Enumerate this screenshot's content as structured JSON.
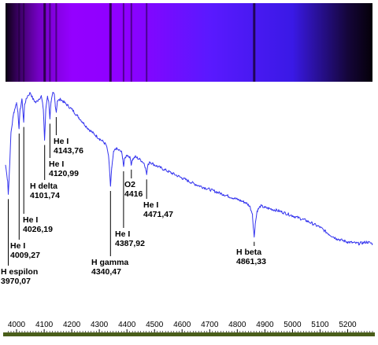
{
  "chart_data": {
    "type": "line",
    "title": "",
    "xlabel": "",
    "ylabel": "",
    "x_ticks": [
      4000,
      4100,
      4200,
      4300,
      4400,
      4500,
      4600,
      4700,
      4800,
      4900,
      5000,
      5100,
      5200
    ],
    "xlim": [
      3960,
      5290
    ],
    "grid": false,
    "colors": {
      "line": "#3333ee",
      "axis_bar": "#4a5e1a"
    },
    "spectrum_strip": {
      "stops": [
        {
          "wavelength": 3960,
          "color": "#0b0010"
        },
        {
          "wavelength": 4000,
          "color": "#35005a"
        },
        {
          "wavelength": 4080,
          "color": "#7400c4"
        },
        {
          "wavelength": 4200,
          "color": "#9400ff"
        },
        {
          "wavelength": 4400,
          "color": "#8e00ff"
        },
        {
          "wavelength": 4700,
          "color": "#5a19ff"
        },
        {
          "wavelength": 5000,
          "color": "#3a19e6"
        },
        {
          "wavelength": 5200,
          "color": "#15063a"
        },
        {
          "wavelength": 5290,
          "color": "#050008"
        }
      ],
      "lines": [
        3970.07,
        4009.27,
        4026.19,
        4101.74,
        4120.99,
        4143.76,
        4340.47,
        4387.92,
        4416,
        4471.47,
        4861.33
      ]
    },
    "series": [
      {
        "x": [
          3960,
          3968,
          3970,
          3973,
          3980,
          3990,
          4000,
          4005,
          4009,
          4013,
          4020,
          4024,
          4026,
          4029,
          4040,
          4050,
          4060,
          4070,
          4080,
          4090,
          4097,
          4101.7,
          4106,
          4112,
          4117,
          4121,
          4125,
          4132,
          4137,
          4140,
          4144,
          4148,
          4160,
          4180,
          4200,
          4220,
          4240,
          4260,
          4280,
          4300,
          4315,
          4325,
          4333,
          4337,
          4340.5,
          4345,
          4352,
          4360,
          4370,
          4380,
          4385,
          4388,
          4392,
          4400,
          4410,
          4414,
          4416,
          4419,
          4430,
          4450,
          4462,
          4468,
          4471.5,
          4475,
          4482,
          4500,
          4550,
          4600,
          4650,
          4700,
          4750,
          4800,
          4830,
          4845,
          4855,
          4858,
          4861.3,
          4865,
          4872,
          4885,
          4900,
          4950,
          5000,
          5050,
          5100,
          5130,
          5160,
          5200,
          5240,
          5270,
          5290
        ],
        "y": [
          0.58,
          0.48,
          0.4,
          0.5,
          0.78,
          0.9,
          0.96,
          0.9,
          0.8,
          0.92,
          0.98,
          0.88,
          0.84,
          0.95,
          1.0,
          1.02,
          0.98,
          0.96,
          0.98,
          1.0,
          0.92,
          0.73,
          0.92,
          1.0,
          0.96,
          0.86,
          0.96,
          1.02,
          1.01,
          0.95,
          0.9,
          0.97,
          0.98,
          0.95,
          0.92,
          0.88,
          0.84,
          0.8,
          0.77,
          0.74,
          0.72,
          0.7,
          0.64,
          0.55,
          0.45,
          0.56,
          0.66,
          0.68,
          0.67,
          0.66,
          0.62,
          0.57,
          0.62,
          0.64,
          0.63,
          0.6,
          0.58,
          0.61,
          0.63,
          0.61,
          0.59,
          0.56,
          0.52,
          0.57,
          0.6,
          0.58,
          0.54,
          0.5,
          0.46,
          0.43,
          0.4,
          0.37,
          0.35,
          0.33,
          0.28,
          0.2,
          0.14,
          0.22,
          0.3,
          0.33,
          0.32,
          0.3,
          0.27,
          0.24,
          0.2,
          0.16,
          0.13,
          0.11,
          0.1,
          0.11,
          0.1
        ]
      }
    ],
    "annotations": [
      {
        "name": "H espilon",
        "value": "3970,07",
        "wavelength": 3970.07,
        "y": 0.4,
        "placement": "bottom"
      },
      {
        "name": "He I",
        "value": "4009,27",
        "wavelength": 4009.27,
        "y": 0.8,
        "placement": "bottom"
      },
      {
        "name": "He I",
        "value": "4026,19",
        "wavelength": 4026.19,
        "y": 0.84,
        "placement": "bottom"
      },
      {
        "name": "H delta",
        "value": "4101,74",
        "wavelength": 4101.74,
        "y": 0.73,
        "placement": "bottom"
      },
      {
        "name": "He I",
        "value": "4120,99",
        "wavelength": 4120.99,
        "y": 0.86,
        "placement": "bottom"
      },
      {
        "name": "He I",
        "value": "4143,76",
        "wavelength": 4143.76,
        "y": 0.9,
        "placement": "bottom"
      },
      {
        "name": "H gamma",
        "value": "4340,47",
        "wavelength": 4340.47,
        "y": 0.45,
        "placement": "bottom"
      },
      {
        "name": "He I",
        "value": "4387,92",
        "wavelength": 4387.92,
        "y": 0.57,
        "placement": "bottom"
      },
      {
        "name": "O2",
        "value": "4416",
        "wavelength": 4416,
        "y": 0.58,
        "placement": "bottom"
      },
      {
        "name": "He I",
        "value": "4471,47",
        "wavelength": 4471.47,
        "y": 0.52,
        "placement": "bottom"
      },
      {
        "name": "H beta",
        "value": "4861,33",
        "wavelength": 4861.33,
        "y": 0.14,
        "placement": "bottom"
      }
    ]
  }
}
